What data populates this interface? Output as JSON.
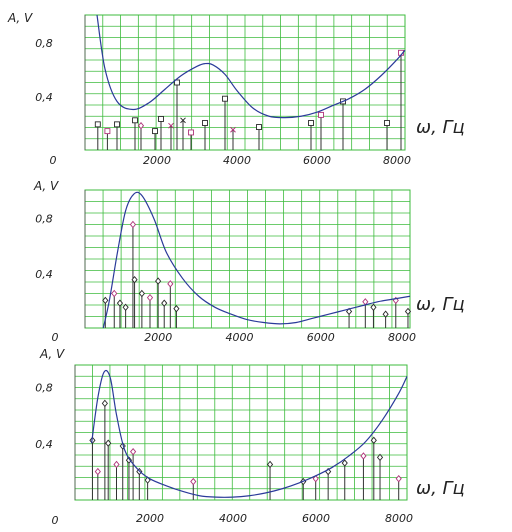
{
  "chart_data": [
    {
      "type": "line",
      "ylabel": "A, V",
      "xlabel": "ω, Гц",
      "origin_label": "0",
      "x_ticks": [
        "2000",
        "4000",
        "6000",
        "8000"
      ],
      "y_ticks": [
        "0,4",
        "0,8"
      ],
      "xlim": [
        0,
        8000
      ],
      "ylim": [
        0,
        1.0
      ],
      "grid": true,
      "curve": {
        "x": [
          300,
          500,
          800,
          1200,
          1600,
          2000,
          2400,
          2800,
          3000,
          3200,
          3500,
          3800,
          4200,
          4600,
          5000,
          5400,
          5800,
          6200,
          6600,
          7000,
          7400,
          7800,
          8000
        ],
        "y": [
          1.0,
          0.6,
          0.36,
          0.3,
          0.35,
          0.45,
          0.55,
          0.62,
          0.64,
          0.63,
          0.56,
          0.44,
          0.31,
          0.25,
          0.24,
          0.25,
          0.28,
          0.33,
          0.38,
          0.45,
          0.55,
          0.67,
          0.74
        ]
      },
      "stems": [
        {
          "x": 320,
          "y": 0.19,
          "m": "s"
        },
        {
          "x": 560,
          "y": 0.14,
          "m": "s"
        },
        {
          "x": 800,
          "y": 0.19,
          "m": "s"
        },
        {
          "x": 1250,
          "y": 0.22,
          "m": "s"
        },
        {
          "x": 1400,
          "y": 0.18,
          "m": "d"
        },
        {
          "x": 1750,
          "y": 0.14,
          "m": "s"
        },
        {
          "x": 1900,
          "y": 0.23,
          "m": "s"
        },
        {
          "x": 2150,
          "y": 0.18,
          "m": "x"
        },
        {
          "x": 2300,
          "y": 0.5,
          "m": "s"
        },
        {
          "x": 2450,
          "y": 0.22,
          "m": "x"
        },
        {
          "x": 2650,
          "y": 0.13,
          "m": "s"
        },
        {
          "x": 3000,
          "y": 0.2,
          "m": "s"
        },
        {
          "x": 3500,
          "y": 0.38,
          "m": "s"
        },
        {
          "x": 3700,
          "y": 0.15,
          "m": "x"
        },
        {
          "x": 4350,
          "y": 0.17,
          "m": "s"
        },
        {
          "x": 5650,
          "y": 0.2,
          "m": "s"
        },
        {
          "x": 5900,
          "y": 0.26,
          "m": "s"
        },
        {
          "x": 6450,
          "y": 0.36,
          "m": "s"
        },
        {
          "x": 7550,
          "y": 0.2,
          "m": "s"
        },
        {
          "x": 7900,
          "y": 0.72,
          "m": "s"
        }
      ]
    },
    {
      "type": "line",
      "ylabel": "A, V",
      "xlabel": "ω, Гц",
      "origin_label": "0",
      "x_ticks": [
        "2000",
        "4000",
        "6000",
        "8000"
      ],
      "y_ticks": [
        "0,4",
        "0,8"
      ],
      "xlim": [
        0,
        8000
      ],
      "ylim": [
        0,
        1.0
      ],
      "grid": true,
      "curve": {
        "x": [
          450,
          600,
          800,
          1000,
          1200,
          1400,
          1700,
          2000,
          2400,
          2800,
          3200,
          3600,
          4000,
          4400,
          4800,
          5200,
          5600,
          6000,
          6400,
          6800,
          7200,
          7600,
          8000
        ],
        "y": [
          0.0,
          0.2,
          0.55,
          0.85,
          0.97,
          0.96,
          0.79,
          0.55,
          0.36,
          0.23,
          0.15,
          0.1,
          0.06,
          0.04,
          0.03,
          0.04,
          0.07,
          0.1,
          0.13,
          0.16,
          0.19,
          0.21,
          0.23
        ]
      },
      "stems": [
        {
          "x": 500,
          "y": 0.2,
          "m": "d"
        },
        {
          "x": 720,
          "y": 0.25,
          "m": "d"
        },
        {
          "x": 860,
          "y": 0.18,
          "m": "d"
        },
        {
          "x": 1000,
          "y": 0.15,
          "m": "d"
        },
        {
          "x": 1180,
          "y": 0.75,
          "m": "d"
        },
        {
          "x": 1220,
          "y": 0.35,
          "m": "d"
        },
        {
          "x": 1400,
          "y": 0.25,
          "m": "d"
        },
        {
          "x": 1600,
          "y": 0.22,
          "m": "d"
        },
        {
          "x": 1800,
          "y": 0.34,
          "m": "d"
        },
        {
          "x": 1950,
          "y": 0.18,
          "m": "d"
        },
        {
          "x": 2100,
          "y": 0.32,
          "m": "d"
        },
        {
          "x": 2250,
          "y": 0.14,
          "m": "d"
        },
        {
          "x": 6500,
          "y": 0.12,
          "m": "d"
        },
        {
          "x": 6900,
          "y": 0.19,
          "m": "d"
        },
        {
          "x": 7100,
          "y": 0.15,
          "m": "d"
        },
        {
          "x": 7400,
          "y": 0.1,
          "m": "d"
        },
        {
          "x": 7650,
          "y": 0.2,
          "m": "d"
        },
        {
          "x": 7950,
          "y": 0.12,
          "m": "d"
        }
      ]
    },
    {
      "type": "line",
      "ylabel": "A, V",
      "xlabel": "ω, Гц",
      "origin_label": "0",
      "x_ticks": [
        "2000",
        "4000",
        "6000",
        "8000"
      ],
      "y_ticks": [
        "0,4",
        "0,8"
      ],
      "xlim": [
        0,
        8000
      ],
      "ylim": [
        0,
        0.95
      ],
      "grid": true,
      "curve": {
        "x": [
          400,
          550,
          700,
          850,
          1000,
          1200,
          1500,
          1800,
          2200,
          2600,
          3000,
          3400,
          3800,
          4200,
          4600,
          5000,
          5400,
          5800,
          6200,
          6600,
          7000,
          7400,
          7800,
          8000
        ],
        "y": [
          0.4,
          0.72,
          0.9,
          0.86,
          0.6,
          0.35,
          0.22,
          0.15,
          0.1,
          0.06,
          0.03,
          0.02,
          0.02,
          0.03,
          0.05,
          0.08,
          0.12,
          0.17,
          0.23,
          0.31,
          0.41,
          0.56,
          0.75,
          0.87
        ]
      },
      "stems": [
        {
          "x": 420,
          "y": 0.42,
          "m": "d"
        },
        {
          "x": 550,
          "y": 0.2,
          "m": "d"
        },
        {
          "x": 720,
          "y": 0.68,
          "m": "d"
        },
        {
          "x": 800,
          "y": 0.4,
          "m": "d"
        },
        {
          "x": 1000,
          "y": 0.25,
          "m": "d"
        },
        {
          "x": 1150,
          "y": 0.38,
          "m": "d"
        },
        {
          "x": 1300,
          "y": 0.28,
          "m": "d"
        },
        {
          "x": 1400,
          "y": 0.34,
          "m": "d"
        },
        {
          "x": 1550,
          "y": 0.2,
          "m": "d"
        },
        {
          "x": 1750,
          "y": 0.14,
          "m": "d"
        },
        {
          "x": 2850,
          "y": 0.13,
          "m": "d"
        },
        {
          "x": 4700,
          "y": 0.25,
          "m": "d"
        },
        {
          "x": 5500,
          "y": 0.13,
          "m": "d"
        },
        {
          "x": 5800,
          "y": 0.15,
          "m": "d"
        },
        {
          "x": 6100,
          "y": 0.2,
          "m": "d"
        },
        {
          "x": 6500,
          "y": 0.26,
          "m": "d"
        },
        {
          "x": 6950,
          "y": 0.31,
          "m": "d"
        },
        {
          "x": 7200,
          "y": 0.42,
          "m": "d"
        },
        {
          "x": 7350,
          "y": 0.3,
          "m": "d"
        },
        {
          "x": 7800,
          "y": 0.15,
          "m": "d"
        }
      ]
    }
  ],
  "colors": {
    "grid": "#3dbb3d",
    "curve": "#2b3a9a",
    "stem": "#333333",
    "marker_a": "#2a2a2a",
    "marker_b": "#b0347a"
  }
}
